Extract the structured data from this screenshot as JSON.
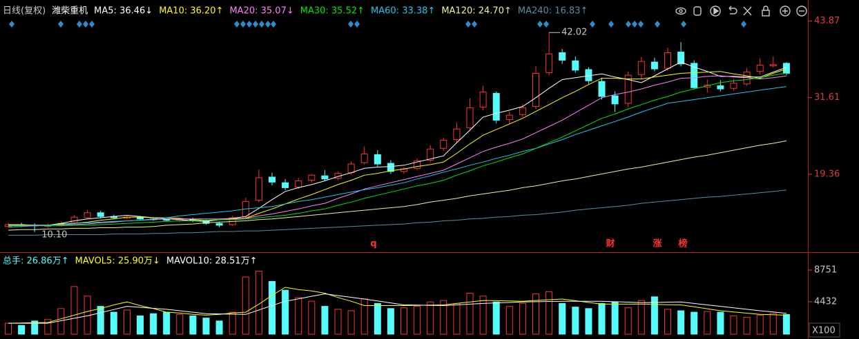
{
  "header": {
    "period": "日线(复权)",
    "stock": "潍柴重机"
  },
  "chart_data": [
    {
      "type": "candlestick",
      "categories": [
        null,
        null,
        null,
        null,
        null,
        null,
        null,
        null,
        null,
        null,
        null,
        null,
        null,
        null,
        null,
        null,
        null,
        null,
        null,
        null,
        null,
        null,
        null,
        null,
        null,
        null,
        null,
        null,
        null,
        null,
        null,
        null,
        null,
        null,
        null,
        null,
        null,
        null,
        null,
        null,
        null,
        null,
        null,
        null,
        null,
        null,
        null,
        null,
        null,
        null,
        null,
        null,
        null,
        null,
        null,
        null,
        null,
        null,
        null,
        null
      ],
      "open": [
        11.0,
        11.3,
        11.2,
        11.0,
        11.2,
        11.6,
        12.4,
        13.2,
        12.6,
        12.3,
        12.5,
        12.2,
        12.1,
        11.9,
        12.1,
        11.9,
        11.5,
        11.3,
        12.5,
        15.2,
        18.9,
        18.0,
        17.3,
        18.4,
        19.1,
        18.7,
        19.6,
        21.2,
        22.5,
        21.1,
        19.8,
        20.3,
        21.6,
        23.5,
        24.9,
        26.8,
        30.1,
        32.3,
        28.1,
        28.9,
        30.2,
        35.6,
        38.8,
        37.5,
        36.1,
        34.2,
        31.9,
        30.7,
        35.3,
        37.3,
        36.3,
        38.9,
        37.1,
        33.3,
        33.5,
        33.1,
        33.8,
        35.8,
        36.7,
        37.1
      ],
      "high": [
        11.6,
        11.6,
        11.5,
        11.5,
        11.8,
        12.8,
        13.6,
        13.5,
        12.9,
        12.8,
        12.7,
        12.5,
        12.3,
        12.3,
        12.4,
        12.1,
        11.8,
        12.7,
        15.6,
        20.1,
        19.6,
        18.6,
        18.8,
        19.4,
        20.0,
        19.8,
        21.4,
        23.8,
        23.2,
        21.6,
        20.5,
        21.9,
        24.0,
        25.2,
        27.6,
        31.5,
        33.5,
        32.6,
        29.4,
        30.6,
        36.6,
        42.02,
        39.4,
        38.2,
        36.5,
        34.8,
        32.6,
        35.8,
        38.1,
        38.0,
        39.6,
        40.5,
        37.6,
        34.5,
        34.4,
        34.6,
        36.4,
        37.9,
        38.2,
        37.3
      ],
      "low": [
        10.8,
        10.9,
        10.1,
        10.8,
        11.0,
        11.4,
        12.2,
        12.3,
        12.2,
        12.1,
        12.0,
        11.9,
        11.8,
        11.7,
        11.7,
        11.3,
        10.9,
        11.1,
        12.2,
        14.9,
        17.6,
        16.8,
        17.0,
        18.0,
        18.3,
        18.4,
        19.3,
        20.9,
        20.6,
        19.4,
        19.4,
        20.0,
        21.3,
        23.1,
        24.5,
        26.5,
        29.6,
        27.5,
        27.4,
        28.5,
        29.8,
        35.2,
        37.0,
        35.6,
        33.8,
        31.3,
        29.3,
        30.1,
        34.6,
        35.8,
        35.9,
        36.6,
        33.0,
        32.4,
        32.6,
        32.7,
        33.5,
        35.3,
        36.4,
        35.2
      ],
      "close": [
        11.3,
        11.2,
        11.1,
        11.2,
        11.5,
        12.5,
        13.2,
        12.6,
        12.4,
        12.5,
        12.2,
        12.1,
        12.0,
        12.1,
        11.9,
        11.5,
        11.2,
        12.4,
        15.0,
        18.8,
        18.1,
        17.2,
        18.3,
        19.2,
        18.6,
        19.5,
        21.0,
        22.6,
        21.0,
        19.8,
        20.2,
        21.5,
        23.4,
        24.8,
        26.6,
        30.0,
        32.5,
        28.0,
        28.8,
        30.0,
        35.5,
        38.6,
        37.6,
        36.0,
        34.3,
        31.8,
        30.6,
        35.2,
        37.4,
        36.2,
        38.8,
        37.0,
        33.2,
        33.6,
        33.0,
        33.9,
        35.7,
        36.8,
        36.9,
        35.5
      ],
      "up_color": "#ff3232",
      "down_color": "#54fcfc",
      "series": [
        {
          "name": "MA5: 36.46↓",
          "color": "#ffffff",
          "values": [
            11.2,
            11.2,
            11.2,
            11.2,
            11.5,
            11.9,
            12.2,
            12.4,
            12.6,
            12.8,
            12.6,
            12.4,
            12.2,
            12.1,
            11.9,
            11.8,
            12.1,
            12.3,
            12.6,
            13.9,
            15.3,
            16.6,
            17.2,
            17.7,
            18.3,
            19.0,
            19.6,
            20.3,
            20.5,
            20.6,
            20.8,
            21.3,
            21.8,
            22.3,
            24.4,
            26.4,
            28.5,
            29.1,
            29.6,
            30.2,
            31.6,
            33.1,
            34.5,
            34.8,
            35.1,
            35.4,
            34.9,
            34.5,
            34.0,
            35.1,
            36.2,
            37.3,
            36.5,
            35.8,
            35.0,
            35.0,
            34.9,
            34.9,
            35.7,
            36.46
          ]
        },
        {
          "name": "MA10: 36.20↑",
          "color": "#ffff00",
          "values": [
            11.3,
            11.3,
            11.2,
            11.2,
            11.4,
            11.5,
            11.7,
            12.0,
            12.2,
            12.5,
            12.5,
            12.4,
            12.4,
            12.3,
            12.1,
            12.0,
            12.1,
            12.2,
            12.3,
            13.1,
            13.8,
            14.6,
            15.4,
            16.1,
            16.9,
            17.7,
            18.4,
            19.2,
            19.5,
            19.9,
            20.2,
            20.6,
            20.9,
            21.3,
            22.7,
            24.2,
            25.6,
            26.5,
            27.4,
            28.3,
            29.4,
            30.5,
            31.6,
            32.6,
            33.7,
            34.7,
            34.7,
            34.6,
            34.6,
            34.9,
            35.2,
            35.5,
            35.6,
            35.7,
            35.8,
            35.4,
            35.1,
            34.7,
            35.5,
            36.2
          ]
        },
        {
          "name": "MA20: 35.07↓",
          "color": "#ff80ff",
          "values": [
            11.2,
            11.2,
            11.2,
            11.2,
            11.3,
            11.3,
            11.4,
            11.6,
            11.7,
            11.9,
            12.0,
            12.1,
            12.2,
            12.2,
            12.2,
            12.2,
            12.2,
            12.3,
            12.3,
            12.7,
            13.0,
            13.4,
            13.8,
            14.3,
            14.7,
            15.5,
            16.2,
            17.0,
            17.5,
            18.0,
            18.5,
            19.0,
            19.5,
            20.0,
            21.0,
            22.0,
            23.0,
            23.7,
            24.3,
            25.0,
            26.0,
            27.0,
            28.0,
            29.2,
            30.4,
            31.6,
            32.1,
            32.5,
            33.0,
            33.6,
            34.1,
            34.7,
            34.8,
            35.0,
            35.1,
            34.9,
            34.8,
            34.6,
            34.8,
            35.07
          ]
        },
        {
          "name": "MA30: 35.52↑",
          "color": "#00e600",
          "values": [
            11.1,
            11.1,
            11.1,
            11.1,
            11.1,
            11.2,
            11.2,
            11.3,
            11.4,
            11.5,
            11.6,
            11.7,
            11.8,
            11.9,
            11.9,
            12.0,
            12.1,
            12.1,
            12.2,
            12.4,
            12.6,
            12.8,
            13.1,
            13.5,
            13.8,
            14.4,
            14.9,
            15.5,
            16.0,
            16.5,
            17.0,
            17.5,
            17.9,
            18.4,
            19.2,
            19.9,
            20.7,
            21.3,
            22.0,
            22.6,
            23.5,
            24.4,
            25.3,
            26.3,
            27.3,
            28.3,
            29.0,
            29.8,
            30.5,
            31.2,
            31.8,
            32.5,
            33.0,
            33.5,
            34.0,
            34.3,
            34.5,
            34.8,
            35.2,
            35.52
          ]
        },
        {
          "name": "MA60: 33.38↑",
          "color": "#1ec8f0",
          "values": [
            10.9,
            11.0,
            11.1,
            11.2,
            11.3,
            11.5,
            11.6,
            11.7,
            11.8,
            11.9,
            12.0,
            12.2,
            12.4,
            12.7,
            12.9,
            13.1,
            13.3,
            13.5,
            13.8,
            14.0,
            14.2,
            14.6,
            15.0,
            15.3,
            15.7,
            16.1,
            16.5,
            16.9,
            17.2,
            17.6,
            18.0,
            18.6,
            19.1,
            19.7,
            20.2,
            20.8,
            21.3,
            21.9,
            22.4,
            23.0,
            23.5,
            24.2,
            24.9,
            25.7,
            26.4,
            27.1,
            27.8,
            28.5,
            29.3,
            30.0,
            30.7,
            31.0,
            31.3,
            31.6,
            31.9,
            32.2,
            32.5,
            32.8,
            33.1,
            33.38
          ]
        },
        {
          "name": "MA120: 24.70↑",
          "color": "#f0f0a0",
          "values": [
            10.4,
            10.5,
            10.5,
            10.6,
            10.6,
            10.7,
            10.7,
            10.8,
            10.8,
            10.9,
            10.9,
            11.0,
            11.2,
            11.3,
            11.4,
            11.6,
            11.7,
            11.8,
            11.9,
            12.1,
            12.2,
            12.4,
            12.6,
            12.8,
            13.0,
            13.2,
            13.4,
            13.6,
            13.8,
            14.0,
            14.2,
            14.5,
            14.9,
            15.2,
            15.5,
            15.9,
            16.2,
            16.5,
            16.8,
            17.2,
            17.5,
            17.9,
            18.3,
            18.6,
            19.0,
            19.4,
            19.8,
            20.2,
            20.5,
            20.9,
            21.3,
            21.7,
            22.1,
            22.4,
            22.8,
            23.2,
            23.6,
            24.0,
            24.3,
            24.7
          ]
        },
        {
          "name": "MA240: 16.83↑",
          "color": "#5a8ca5",
          "values": [
            9.6,
            9.6,
            9.6,
            9.7,
            9.7,
            9.7,
            9.7,
            9.7,
            9.8,
            9.8,
            9.8,
            9.9,
            9.9,
            10.0,
            10.0,
            10.1,
            10.2,
            10.2,
            10.3,
            10.3,
            10.4,
            10.5,
            10.6,
            10.7,
            10.8,
            10.9,
            11.0,
            11.1,
            11.2,
            11.3,
            11.4,
            11.6,
            11.7,
            11.9,
            12.0,
            12.2,
            12.3,
            12.5,
            12.6,
            12.8,
            12.9,
            13.1,
            13.3,
            13.6,
            13.8,
            14.0,
            14.2,
            14.4,
            14.7,
            14.9,
            15.1,
            15.3,
            15.5,
            15.7,
            15.8,
            16.0,
            16.2,
            16.4,
            16.6,
            16.83
          ]
        }
      ],
      "ylim": [
        7.0,
        44.8
      ],
      "yticks": [
        43.87,
        31.61,
        19.36
      ],
      "annotations": [
        "42.02",
        "10.10"
      ],
      "event_labels": [
        "q",
        "财",
        "涨",
        "榜"
      ]
    },
    {
      "type": "bar",
      "categories": [
        null,
        null,
        null,
        null,
        null,
        null,
        null,
        null,
        null,
        null,
        null,
        null,
        null,
        null,
        null,
        null,
        null,
        null,
        null,
        null,
        null,
        null,
        null,
        null,
        null,
        null,
        null,
        null,
        null,
        null,
        null,
        null,
        null,
        null,
        null,
        null,
        null,
        null,
        null,
        null,
        null,
        null,
        null,
        null,
        null,
        null,
        null,
        null,
        null,
        null,
        null,
        null,
        null,
        null,
        null,
        null,
        null,
        null,
        null,
        null
      ],
      "series": [
        {
          "name": "总手: 26.86万↑",
          "color": "#54fcfc",
          "values": [
            1500,
            1200,
            1800,
            2000,
            3500,
            6500,
            5200,
            3800,
            3000,
            3300,
            2500,
            2800,
            3000,
            2700,
            2500,
            2200,
            1800,
            3000,
            7800,
            8600,
            7200,
            6000,
            5000,
            4500,
            3800,
            3400,
            3200,
            4800,
            4200,
            3500,
            3600,
            3800,
            4400,
            4600,
            4200,
            5600,
            5200,
            4400,
            3800,
            4200,
            5500,
            5800,
            4200,
            3700,
            3500,
            4200,
            4400,
            3600,
            4600,
            5100,
            3400,
            3200,
            3000,
            3100,
            3000,
            2500,
            2300,
            2600,
            2850,
            2686
          ]
        },
        {
          "name": "MAVOL5: 25.90万↓",
          "color": "#ffff00",
          "values": [
            1500,
            1530,
            1570,
            1600,
            2100,
            2600,
            3100,
            3500,
            4000,
            4400,
            3900,
            3500,
            3000,
            2900,
            2700,
            2600,
            2700,
            2900,
            3000,
            4100,
            5300,
            6400,
            6100,
            5900,
            5600,
            5000,
            4500,
            3900,
            3900,
            3900,
            3900,
            3930,
            3970,
            4000,
            4200,
            4400,
            4600,
            4570,
            4530,
            4500,
            4600,
            4700,
            4800,
            4570,
            4330,
            4100,
            4100,
            4100,
            4100,
            4070,
            4030,
            4000,
            3730,
            3470,
            3200,
            3030,
            2870,
            2700,
            2650,
            2590
          ]
        },
        {
          "name": "MAVOL10: 28.51万↑",
          "color": "#ffffff",
          "values": [
            1500,
            1500,
            1500,
            1500,
            1830,
            2170,
            2500,
            2930,
            3370,
            3800,
            3670,
            3530,
            3400,
            3200,
            3000,
            2800,
            2770,
            2730,
            2700,
            3300,
            3900,
            4500,
            4830,
            5170,
            5500,
            5270,
            5030,
            4800,
            4530,
            4270,
            4000,
            3970,
            3930,
            3900,
            4000,
            4100,
            4200,
            4270,
            4330,
            4400,
            4430,
            4470,
            4500,
            4500,
            4500,
            4500,
            4430,
            4370,
            4300,
            4330,
            4370,
            4400,
            4200,
            4000,
            3800,
            3600,
            3400,
            3200,
            3030,
            2851
          ]
        }
      ],
      "ylim": [
        0,
        10630
      ],
      "yticks": [
        8751,
        4432
      ],
      "unit_label": "X100"
    }
  ]
}
